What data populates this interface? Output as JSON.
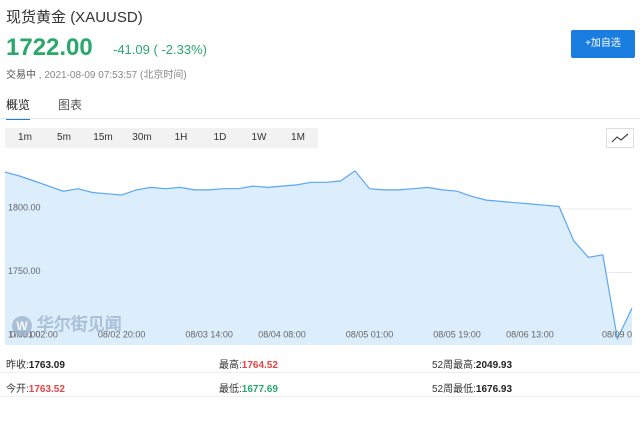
{
  "header": {
    "name": "现货黄金",
    "symbol": "(XAUUSD)",
    "price": "1722.00",
    "change": "-41.09",
    "change_pct": "( -2.33%)",
    "status": "交易中",
    "time": "2021-08-09 07:53:57",
    "timezone": "(北京时间)",
    "button": "+加自选"
  },
  "tabs": [
    "概览",
    "图表"
  ],
  "ranges": [
    "1m",
    "5m",
    "15m",
    "30m",
    "1H",
    "1D",
    "1W",
    "1M"
  ],
  "watermark": "华尔街见闻",
  "chart_data": {
    "type": "area",
    "color": "#5ba7f0",
    "fill": "#dcedfc",
    "grid": true,
    "categories": [
      null,
      null,
      "07/31 02:00",
      null,
      null,
      null,
      null,
      null,
      "08/02 20:00",
      null,
      null,
      null,
      null,
      null,
      "08/03 14:00",
      null,
      null,
      null,
      null,
      "08/04 08:00",
      null,
      null,
      null,
      null,
      null,
      "08/05 01:00",
      null,
      null,
      null,
      null,
      null,
      "08/05 19:00",
      null,
      null,
      null,
      null,
      "08/06 13:00",
      null,
      null,
      null,
      null,
      null,
      null,
      "08/09 0"
    ],
    "values": [
      1829,
      1826,
      1822,
      1818,
      1814,
      1816,
      1813,
      1812,
      1811,
      1815,
      1817,
      1816,
      1817,
      1815,
      1815,
      1816,
      1816,
      1818,
      1817,
      1818,
      1819,
      1821,
      1821,
      1822,
      1830,
      1816,
      1815,
      1815,
      1816,
      1817,
      1815,
      1814,
      1810,
      1807,
      1806,
      1805,
      1804,
      1803,
      1802,
      1775,
      1762,
      1764,
      1698,
      1722
    ],
    "ylim": [
      1693,
      1848
    ],
    "yticks": [
      {
        "value": 1700,
        "label": "1700.00"
      },
      {
        "value": 1750,
        "label": "1750.00"
      },
      {
        "value": 1800,
        "label": "1800.00"
      }
    ]
  },
  "stats": [
    [
      {
        "label": "昨收:",
        "value": "1763.09"
      },
      {
        "label": "最高:",
        "value": "1764.52"
      },
      {
        "label": "52周最高:",
        "value": "2049.93"
      }
    ],
    [
      {
        "label": "今开:",
        "value": "1763.52"
      },
      {
        "label": "最低:",
        "value": "1677.69"
      },
      {
        "label": "52周最低:",
        "value": "1676.93"
      }
    ]
  ]
}
